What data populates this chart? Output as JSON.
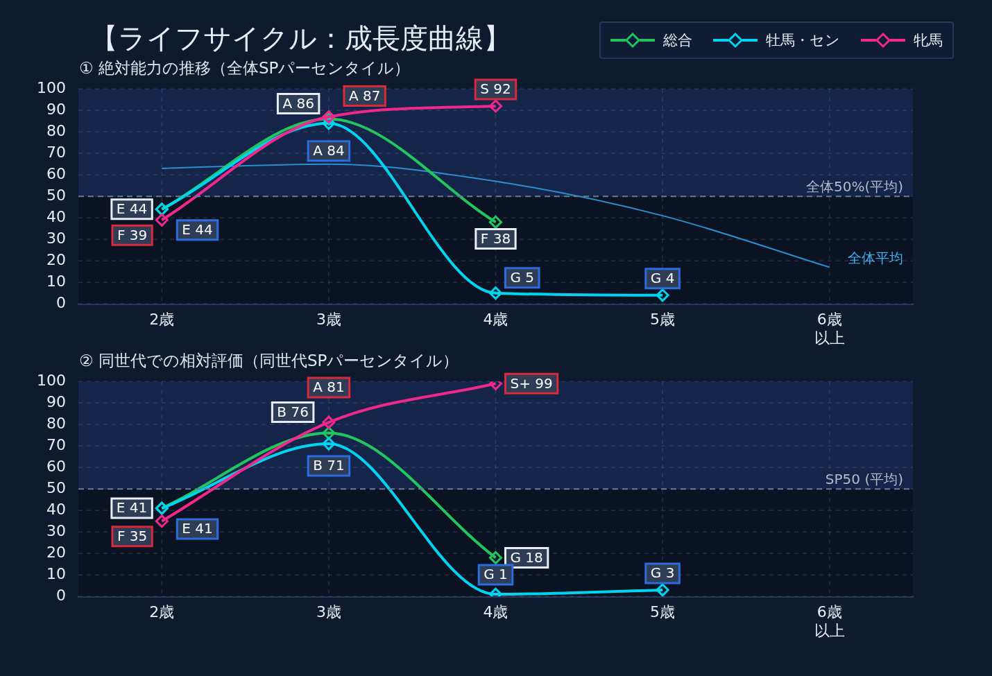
{
  "chart_data": [
    {
      "type": "line",
      "title": "【ライフサイクル：成長度曲線】",
      "subtitle": "① 絶対能力の推移（全体SPパーセンタイル）",
      "categories": [
        "2歳",
        "3歳",
        "4歳",
        "5歳",
        "6歳以上"
      ],
      "series": [
        {
          "name": "総合",
          "color": "#22c55e",
          "values": [
            44,
            86,
            38,
            null,
            null
          ],
          "value_labels": [
            "E 44",
            "A 86",
            "F 38",
            null,
            null
          ]
        },
        {
          "name": "牡馬・セン",
          "color": "#00d4f0",
          "values": [
            44,
            84,
            5,
            4,
            null
          ],
          "value_labels": [
            "E 44",
            "A 84",
            "G 5",
            "G 4",
            null
          ]
        },
        {
          "name": "牝馬",
          "color": "#f0288c",
          "values": [
            39,
            87,
            92,
            null,
            null
          ],
          "value_labels": [
            "F 39",
            "A 87",
            "S 92",
            null,
            null
          ]
        },
        {
          "name": "全体平均",
          "color": "#2a8fd0",
          "values": [
            63,
            65,
            57,
            41,
            17
          ],
          "marker": "none"
        }
      ],
      "ylim": [
        0,
        100
      ],
      "yticks": [
        0,
        10,
        20,
        30,
        40,
        50,
        60,
        70,
        80,
        90,
        100
      ],
      "grid": true,
      "legend": "top right",
      "marker": "diamond",
      "ref_lines": [
        {
          "axis": "y",
          "value": 50,
          "label": "全体50%(平均)",
          "line_style": "dashed"
        }
      ],
      "bands": [
        {
          "axis": "y",
          "from": 50,
          "to": 100,
          "color": "#15254a"
        }
      ]
    },
    {
      "type": "line",
      "title": "② 同世代での相対評価（同世代SPパーセンタイル）",
      "categories": [
        "2歳",
        "3歳",
        "4歳",
        "5歳",
        "6歳以上"
      ],
      "series": [
        {
          "name": "総合",
          "color": "#22c55e",
          "values": [
            41,
            76,
            18,
            null,
            null
          ],
          "value_labels": [
            "E 41",
            "B 76",
            "G 18",
            null,
            null
          ]
        },
        {
          "name": "牡馬・セン",
          "color": "#00d4f0",
          "values": [
            41,
            71,
            1,
            3,
            null
          ],
          "value_labels": [
            "E 41",
            "B 71",
            "G 1",
            "G 3",
            null
          ]
        },
        {
          "name": "牝馬",
          "color": "#f0288c",
          "values": [
            35,
            81,
            99,
            null,
            null
          ],
          "value_labels": [
            "F 35",
            "A 81",
            "S+ 99",
            null,
            null
          ]
        }
      ],
      "ylim": [
        0,
        100
      ],
      "yticks": [
        0,
        10,
        20,
        30,
        40,
        50,
        60,
        70,
        80,
        90,
        100
      ],
      "grid": true,
      "marker": "diamond",
      "legend": "top right",
      "ref_lines": [
        {
          "axis": "y",
          "value": 50,
          "label": "SP50 (平均)",
          "line_style": "dashed"
        }
      ],
      "bands": [
        {
          "axis": "y",
          "from": 50,
          "to": 100,
          "color": "#15254a"
        }
      ]
    }
  ]
}
